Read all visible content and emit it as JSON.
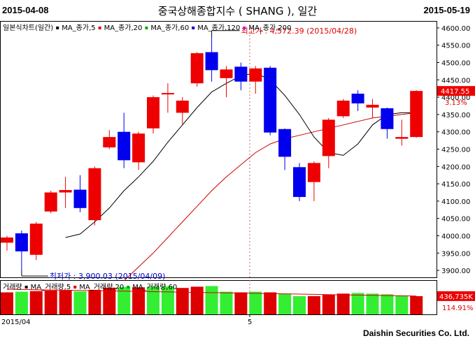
{
  "header": {
    "start_date": "2015-04-08",
    "title": "중국상해종합지수 ( SHANG ), 일간",
    "end_date": "2015-05-19"
  },
  "legend_main": [
    {
      "label": "일본식차트(일간)",
      "color": "#000000"
    },
    {
      "label": "MA_종가,5",
      "color": "#000000"
    },
    {
      "label": "MA_종가,20",
      "color": "#dd0000"
    },
    {
      "label": "MA_종가,60",
      "color": "#00aa00"
    },
    {
      "label": "MA_종가,120",
      "color": "#0000cc"
    },
    {
      "label": "MA_종가,200",
      "color": "#cc00cc"
    }
  ],
  "legend_volume": [
    {
      "label": "거래량",
      "color": "#000000"
    },
    {
      "label": "MA_거래량,5",
      "color": "#000000"
    },
    {
      "label": "MA_거래량,20",
      "color": "#dd0000"
    },
    {
      "label": "MA_거래량,60",
      "color": "#00aa00"
    }
  ],
  "annotations": {
    "high": "최고가 : 4,572.39 (2015/04/28)",
    "low": "최저가 : 3,900.03 (2015/04/09)"
  },
  "price_tag": {
    "value": "4417.55",
    "pct": "3.13%"
  },
  "volume_tag": {
    "value": "436,735K",
    "pct": "114.91%"
  },
  "x_labels": [
    "2015/04",
    "5"
  ],
  "y_ticks": [
    "4600.00",
    "4550.00",
    "4500.00",
    "4450.00",
    "4400.00",
    "4350.00",
    "4300.00",
    "4250.00",
    "4200.00",
    "4150.00",
    "4100.00",
    "4050.00",
    "4000.00",
    "3950.00",
    "3900.00"
  ],
  "footer": "Daishin Securities Co. Ltd.",
  "colors": {
    "up": "#ee0000",
    "down": "#0000ee",
    "vol_up": "#dd0000",
    "vol_down": "#33ee33",
    "ma5": "#000000",
    "ma20": "#cc0000"
  },
  "chart_data": {
    "type": "candlestick",
    "ylim": [
      3880,
      4620
    ],
    "candles": [
      {
        "o": 3980,
        "c": 3995,
        "h": 4000,
        "l": 3957
      },
      {
        "o": 4007,
        "c": 3955,
        "h": 4015,
        "l": 3900
      },
      {
        "o": 3945,
        "c": 4035,
        "h": 4040,
        "l": 3930
      },
      {
        "o": 4070,
        "c": 4125,
        "h": 4130,
        "l": 4065
      },
      {
        "o": 4125,
        "c": 4132,
        "h": 4170,
        "l": 4080
      },
      {
        "o": 4133,
        "c": 4080,
        "h": 4175,
        "l": 4068
      },
      {
        "o": 4045,
        "c": 4195,
        "h": 4200,
        "l": 4030
      },
      {
        "o": 4255,
        "c": 4285,
        "h": 4305,
        "l": 4250
      },
      {
        "o": 4300,
        "c": 4218,
        "h": 4355,
        "l": 4195
      },
      {
        "o": 4212,
        "c": 4295,
        "h": 4300,
        "l": 4190
      },
      {
        "o": 4310,
        "c": 4400,
        "h": 4405,
        "l": 4295
      },
      {
        "o": 4410,
        "c": 4412,
        "h": 4440,
        "l": 4355
      },
      {
        "o": 4355,
        "c": 4390,
        "h": 4400,
        "l": 4320
      },
      {
        "o": 4440,
        "c": 4527,
        "h": 4530,
        "l": 4430
      },
      {
        "o": 4530,
        "c": 4478,
        "h": 4572,
        "l": 4445
      },
      {
        "o": 4455,
        "c": 4480,
        "h": 4490,
        "l": 4400
      },
      {
        "o": 4488,
        "c": 4445,
        "h": 4500,
        "l": 4420
      },
      {
        "o": 4445,
        "c": 4483,
        "h": 4490,
        "l": 4410
      },
      {
        "o": 4485,
        "c": 4298,
        "h": 4490,
        "l": 4290
      },
      {
        "o": 4308,
        "c": 4228,
        "h": 4310,
        "l": 4190
      },
      {
        "o": 4198,
        "c": 4112,
        "h": 4210,
        "l": 4100
      },
      {
        "o": 4155,
        "c": 4210,
        "h": 4215,
        "l": 4100
      },
      {
        "o": 4230,
        "c": 4335,
        "h": 4340,
        "l": 4195
      },
      {
        "o": 4345,
        "c": 4390,
        "h": 4395,
        "l": 4340
      },
      {
        "o": 4410,
        "c": 4382,
        "h": 4420,
        "l": 4360
      },
      {
        "o": 4370,
        "c": 4378,
        "h": 4395,
        "l": 4340
      },
      {
        "o": 4368,
        "c": 4308,
        "h": 4370,
        "l": 4280
      },
      {
        "o": 4280,
        "c": 4285,
        "h": 4335,
        "l": 4260
      },
      {
        "o": 4285,
        "c": 4418,
        "h": 4420,
        "l": 4283
      }
    ],
    "ma5": [
      null,
      null,
      null,
      null,
      3995,
      4005,
      4040,
      4080,
      4130,
      4170,
      4215,
      4270,
      4320,
      4370,
      4415,
      4440,
      4462,
      4470,
      4450,
      4405,
      4350,
      4285,
      4240,
      4232,
      4265,
      4320,
      4350,
      4355,
      4355
    ],
    "ma20": [
      null,
      null,
      null,
      null,
      null,
      null,
      null,
      null,
      3870,
      3910,
      3950,
      3995,
      4040,
      4085,
      4130,
      4170,
      4205,
      4240,
      4265,
      4280,
      4290,
      4300,
      4310,
      4320,
      4330,
      4340,
      4345,
      4350,
      4355
    ],
    "volume": [
      {
        "v": 0.7,
        "up": true
      },
      {
        "v": 0.72,
        "up": false
      },
      {
        "v": 0.74,
        "up": true
      },
      {
        "v": 0.76,
        "up": true
      },
      {
        "v": 0.76,
        "up": true
      },
      {
        "v": 0.73,
        "up": false
      },
      {
        "v": 0.78,
        "up": true
      },
      {
        "v": 0.85,
        "up": true
      },
      {
        "v": 0.87,
        "up": false
      },
      {
        "v": 0.86,
        "up": true
      },
      {
        "v": 0.88,
        "up": false
      },
      {
        "v": 0.89,
        "up": false
      },
      {
        "v": 0.84,
        "up": true
      },
      {
        "v": 0.88,
        "up": true
      },
      {
        "v": 0.9,
        "up": false
      },
      {
        "v": 0.72,
        "up": false
      },
      {
        "v": 0.7,
        "up": true
      },
      {
        "v": 0.72,
        "up": false
      },
      {
        "v": 0.7,
        "up": true
      },
      {
        "v": 0.66,
        "up": false
      },
      {
        "v": 0.58,
        "up": false
      },
      {
        "v": 0.58,
        "up": true
      },
      {
        "v": 0.62,
        "up": true
      },
      {
        "v": 0.66,
        "up": true
      },
      {
        "v": 0.68,
        "up": false
      },
      {
        "v": 0.66,
        "up": false
      },
      {
        "v": 0.64,
        "up": false
      },
      {
        "v": 0.6,
        "up": false
      },
      {
        "v": 0.58,
        "up": true
      }
    ]
  }
}
